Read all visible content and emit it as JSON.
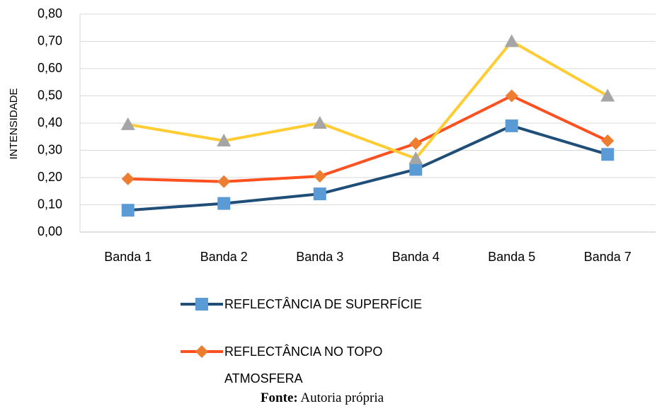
{
  "chart_data": {
    "type": "line",
    "y_label": "INTENSIDADE",
    "categories": [
      "Banda 1",
      "Banda 2",
      "Banda 3",
      "Banda 4",
      "Banda 5",
      "Banda 7"
    ],
    "series": [
      {
        "name": "REFLECTÂNCIA DE SUPERFÍCIE",
        "color": "#1f4e79",
        "marker_color": "#5b9bd5",
        "marker": "square",
        "values": [
          0.08,
          0.105,
          0.14,
          0.23,
          0.39,
          0.285
        ]
      },
      {
        "name": "REFLECTÂNCIA NO TOPO ATMOSFERA",
        "color": "#ff5020",
        "marker_color": "#ed7d31",
        "marker": "diamond",
        "values": [
          0.195,
          0.185,
          0.205,
          0.325,
          0.5,
          0.335
        ]
      },
      {
        "color": "#ffcc33",
        "marker_color": "#a5a5a5",
        "marker": "triangle",
        "values": [
          0.395,
          0.335,
          0.4,
          0.27,
          0.7,
          0.5
        ]
      }
    ],
    "ylim": [
      0,
      0.8
    ],
    "yticks": [
      {
        "value": 0,
        "label": "0,00"
      },
      {
        "value": 0.1,
        "label": "0,10"
      },
      {
        "value": 0.2,
        "label": "0,20"
      },
      {
        "value": 0.3,
        "label": "0,30"
      },
      {
        "value": 0.4,
        "label": "0,40"
      },
      {
        "value": 0.5,
        "label": "0,50"
      },
      {
        "value": 0.6,
        "label": "0,60"
      },
      {
        "value": 0.7,
        "label": "0,70"
      },
      {
        "value": 0.8,
        "label": "0,80"
      }
    ],
    "grid": true,
    "source": {
      "label": "Fonte:",
      "text": "Autoria própria"
    }
  }
}
